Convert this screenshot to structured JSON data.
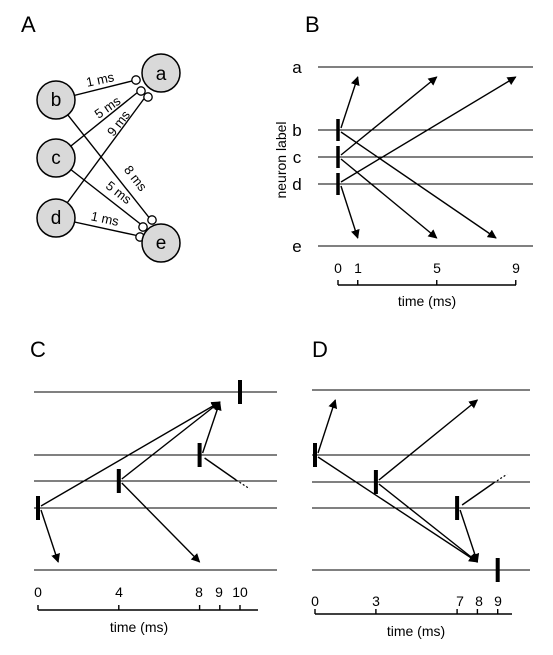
{
  "panel_labels": {
    "a": "A",
    "b": "B",
    "c": "C",
    "d": "D"
  },
  "network": {
    "nodes": [
      {
        "id": "a",
        "label": "a"
      },
      {
        "id": "b",
        "label": "b"
      },
      {
        "id": "c",
        "label": "c"
      },
      {
        "id": "d",
        "label": "d"
      },
      {
        "id": "e",
        "label": "e"
      }
    ],
    "connections": [
      {
        "from": "b",
        "to": "a",
        "delay_label": "1 ms"
      },
      {
        "from": "c",
        "to": "a",
        "delay_label": "5 ms"
      },
      {
        "from": "d",
        "to": "a",
        "delay_label": "9 ms"
      },
      {
        "from": "b",
        "to": "e",
        "delay_label": "8 ms"
      },
      {
        "from": "c",
        "to": "e",
        "delay_label": "5 ms"
      },
      {
        "from": "d",
        "to": "e",
        "delay_label": "1 ms"
      }
    ]
  },
  "chart_data": [
    {
      "panel": "B",
      "type": "raster",
      "ylabel": "neuron label",
      "xlabel": "time (ms)",
      "row_labels": [
        "a",
        "b",
        "c",
        "d",
        "e"
      ],
      "x_ticks": [
        "0",
        "1",
        "5",
        "9"
      ],
      "spikes": [
        {
          "row": "b",
          "t": 0
        },
        {
          "row": "c",
          "t": 0
        },
        {
          "row": "d",
          "t": 0
        }
      ],
      "arrows": [
        {
          "from": "b",
          "to": "a",
          "t0": 0,
          "t1": 1
        },
        {
          "from": "c",
          "to": "a",
          "t0": 0,
          "t1": 5
        },
        {
          "from": "d",
          "to": "a",
          "t0": 0,
          "t1": 9
        },
        {
          "from": "d",
          "to": "e",
          "t0": 0,
          "t1": 1
        },
        {
          "from": "c",
          "to": "e",
          "t0": 0,
          "t1": 5
        },
        {
          "from": "b",
          "to": "e",
          "t0": 0,
          "t1": 8
        }
      ]
    },
    {
      "panel": "C",
      "type": "raster",
      "xlabel": "time (ms)",
      "x_ticks": [
        "0",
        "4",
        "8",
        "9",
        "10"
      ],
      "spikes": [
        {
          "row": "d",
          "t": 0
        },
        {
          "row": "c",
          "t": 4
        },
        {
          "row": "b",
          "t": 8
        },
        {
          "row": "a",
          "t": 10
        }
      ],
      "arrows": [
        {
          "from": "d",
          "to": "a",
          "t0": 0,
          "t1": 9
        },
        {
          "from": "d",
          "to": "e",
          "t0": 0,
          "t1": 1
        },
        {
          "from": "c",
          "to": "a",
          "t0": 4,
          "t1": 9
        },
        {
          "from": "c",
          "to": "e",
          "t0": 4,
          "t1": 8
        },
        {
          "from": "b",
          "to": "a",
          "t0": 8,
          "t1": 9
        }
      ]
    },
    {
      "panel": "D",
      "type": "raster",
      "xlabel": "time (ms)",
      "x_ticks": [
        "0",
        "3",
        "7",
        "8",
        "9"
      ],
      "spikes": [
        {
          "row": "b",
          "t": 0
        },
        {
          "row": "c",
          "t": 3
        },
        {
          "row": "d",
          "t": 7
        },
        {
          "row": "e",
          "t": 9
        }
      ],
      "arrows": [
        {
          "from": "b",
          "to": "a",
          "t0": 0,
          "t1": 1
        },
        {
          "from": "b",
          "to": "e",
          "t0": 0,
          "t1": 8
        },
        {
          "from": "c",
          "to": "a",
          "t0": 3,
          "t1": 8
        },
        {
          "from": "c",
          "to": "e",
          "t0": 3,
          "t1": 8
        },
        {
          "from": "d",
          "to": "e",
          "t0": 7,
          "t1": 8
        }
      ]
    }
  ]
}
